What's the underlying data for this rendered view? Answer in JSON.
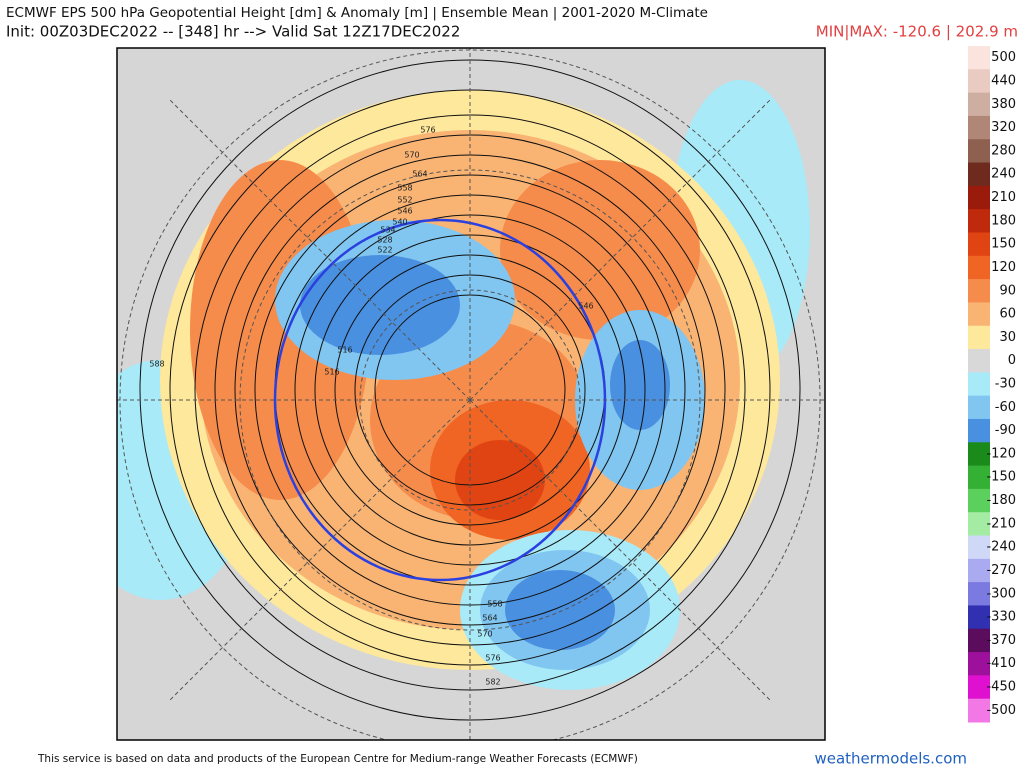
{
  "header": {
    "title": "ECMWF EPS 500 hPa Geopotential Height [dm] & Anomaly [m] | Ensemble Mean | 2001-2020 M-Climate",
    "subtitle": "Init: 00Z03DEC2022 -- [348] hr --> Valid Sat 12Z17DEC2022",
    "minmax": "MIN|MAX: -120.6 | 202.9 m"
  },
  "colorbar": {
    "levels": [
      500,
      440,
      380,
      320,
      280,
      240,
      210,
      180,
      150,
      120,
      90,
      60,
      30,
      0,
      -30,
      -60,
      -90,
      -120,
      -150,
      -180,
      -210,
      -240,
      -270,
      -300,
      -330,
      -370,
      -410,
      -450,
      -500
    ],
    "colors": [
      "#fbe4de",
      "#e9cbc2",
      "#cfaea2",
      "#b08676",
      "#8e6050",
      "#6e2a1c",
      "#9a1a0c",
      "#c02a0c",
      "#e04412",
      "#f06424",
      "#f58c4c",
      "#f9b474",
      "#fde89c",
      "#d8d8d8",
      "#a8eaf8",
      "#80c6f0",
      "#4a90e0",
      "#1a8a1a",
      "#34b034",
      "#5cd05c",
      "#a4eca4",
      "#d0d8f8",
      "#aaaaf0",
      "#7a7ae0",
      "#3030b0",
      "#5c0c5c",
      "#9c109c",
      "#e010d0",
      "#f278e6"
    ]
  },
  "map": {
    "contour_labels": [
      "576",
      "570",
      "564",
      "558",
      "552",
      "546",
      "540",
      "534",
      "528",
      "522",
      "516",
      "516",
      "588",
      "546",
      "582",
      "576",
      "570",
      "564",
      "558"
    ]
  },
  "footer": {
    "credit": "This service is based on data and products of the European Centre for Medium-range Weather Forecasts (ECMWF)",
    "site": "weathermodels.com"
  }
}
